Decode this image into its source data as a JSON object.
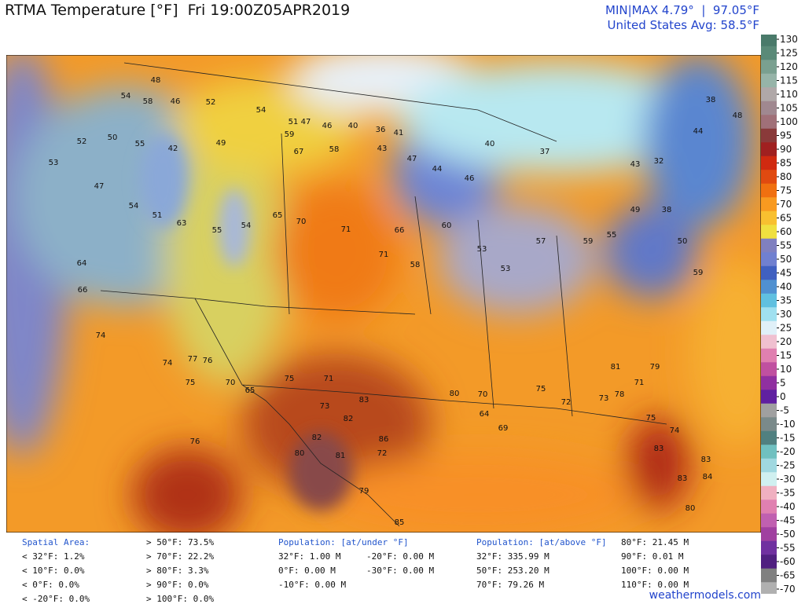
{
  "header": {
    "title": "RTMA Temperature [°F]  Fri 19:00Z05APR2019",
    "min_max": "MIN|MAX 4.79°  |  97.05°F",
    "average": "United States Avg: 58.5°F"
  },
  "colorbar": {
    "ticks": [
      130,
      125,
      120,
      115,
      110,
      105,
      100,
      95,
      90,
      85,
      80,
      75,
      70,
      65,
      60,
      55,
      50,
      45,
      40,
      35,
      30,
      25,
      20,
      15,
      10,
      5,
      0,
      -5,
      -10,
      -15,
      -20,
      -25,
      -30,
      -35,
      -40,
      -45,
      -50,
      -55,
      -60,
      -65,
      -70
    ],
    "colors": [
      "#4a7a6a",
      "#5a8a78",
      "#7aa090",
      "#96b4a8",
      "#b0a8a8",
      "#a08890",
      "#a07078",
      "#8a3a3a",
      "#a02020",
      "#d02a10",
      "#e04a10",
      "#f07010",
      "#f89a20",
      "#f8c030",
      "#f0e040",
      "#8080c0",
      "#7080d0",
      "#4060c0",
      "#5090d0",
      "#60c0e0",
      "#a0e0f0",
      "#e0f0f8",
      "#f0c0d0",
      "#e080b0",
      "#c050a0",
      "#9030a0",
      "#6020a0",
      "#a0a0a0",
      "#7a8a8a",
      "#508080",
      "#70c0c0",
      "#a0d8e0",
      "#d0f0f0",
      "#f0b0c0",
      "#e080b0",
      "#c060b0",
      "#a040a0",
      "#7030a0",
      "#502080",
      "#808080",
      "#b0b0b0"
    ]
  },
  "stations": [
    48,
    54,
    58,
    46,
    52,
    54,
    51,
    47,
    46,
    40,
    36,
    41,
    52,
    50,
    55,
    42,
    49,
    59,
    67,
    58,
    43,
    47,
    44,
    46,
    40,
    37,
    43,
    32,
    38,
    48,
    44,
    53,
    47,
    54,
    51,
    63,
    55,
    54,
    65,
    70,
    71,
    71,
    66,
    58,
    60,
    53,
    53,
    57,
    59,
    55,
    49,
    38,
    50,
    59,
    64,
    66,
    74,
    74,
    77,
    75,
    76,
    70,
    65,
    75,
    71,
    73,
    82,
    83,
    80,
    82,
    81,
    86,
    72,
    79,
    85,
    80,
    70,
    64,
    69,
    75,
    72,
    73,
    71,
    79,
    75,
    74,
    83,
    83,
    83,
    84,
    80,
    81,
    78,
    76
  ],
  "stats": {
    "spatial": {
      "title": "Spatial Area:",
      "items": [
        "< 32°F: 1.2%",
        "< 10°F: 0.0%",
        "< 0°F: 0.0%",
        "< -20°F: 0.0%",
        "> 50°F: 73.5%",
        "> 70°F: 22.2%",
        "> 80°F: 3.3%",
        "> 90°F: 0.0%",
        "> 100°F: 0.0%"
      ]
    },
    "pop_under": {
      "title": "Population: [at/under °F]",
      "items": [
        "32°F: 1.00 M",
        "0°F: 0.00 M",
        "-10°F: 0.00 M",
        "-20°F: 0.00 M",
        "-30°F: 0.00 M"
      ]
    },
    "pop_above": {
      "title": "Population: [at/above °F]",
      "items": [
        "32°F: 335.99 M",
        "50°F: 253.20 M",
        "70°F: 79.26 M",
        "80°F: 21.45 M",
        "90°F: 0.01 M",
        "100°F: 0.00 M",
        "110°F: 0.00 M"
      ]
    }
  },
  "footer": "weathermodels.com"
}
